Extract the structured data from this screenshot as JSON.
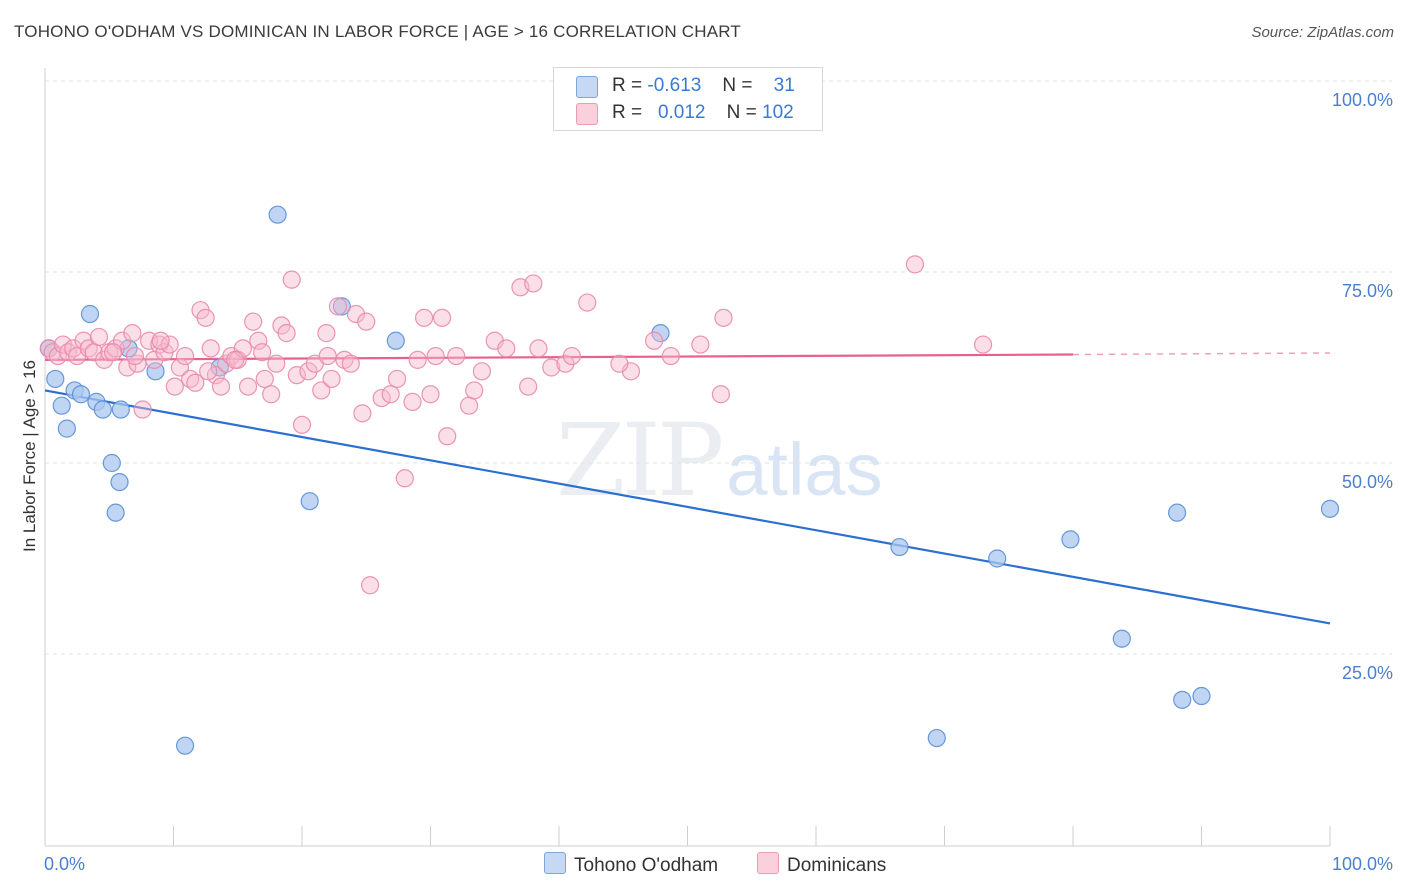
{
  "header": {
    "title": "TOHONO O'ODHAM VS DOMINICAN IN LABOR FORCE | AGE > 16 CORRELATION CHART",
    "source": "Source: ZipAtlas.com"
  },
  "legend": {
    "rows": [
      {
        "r_label": "R =",
        "r_value": "-0.613",
        "n_label": "N =",
        "n_value": "31"
      },
      {
        "r_label": "R =",
        "r_value": "0.012",
        "n_label": "N =",
        "n_value": "102"
      }
    ]
  },
  "watermark": {
    "zip": "ZIP",
    "atlas": "atlas"
  },
  "colors": {
    "blue_fill": "#a9c7ef",
    "blue_stroke": "#5a8fd6",
    "blue_line": "#2a6fd1",
    "pink_fill": "#f6b8cc",
    "pink_stroke": "#e88aa8",
    "pink_line": "#e8608c",
    "grid": "#e2e2e2",
    "tick_label": "#4a7fd0"
  },
  "chart_data": {
    "type": "scatter",
    "title": "TOHONO O'ODHAM VS DOMINICAN IN LABOR FORCE | AGE > 16 CORRELATION CHART",
    "xlabel": "",
    "ylabel": "In Labor Force | Age > 16",
    "xlim": [
      0,
      100
    ],
    "ylim": [
      0,
      102
    ],
    "x_tick_labels": [
      "0.0%",
      "100.0%"
    ],
    "y_ticks": [
      {
        "value": 25,
        "label": "25.0%"
      },
      {
        "value": 50,
        "label": "50.0%"
      },
      {
        "value": 75,
        "label": "75.0%"
      },
      {
        "value": 100,
        "label": "100.0%"
      }
    ],
    "grid": true,
    "legend_position": "bottom",
    "series": [
      {
        "name": "Tohono O'odham",
        "color": "#a9c7ef",
        "points": [
          [
            0.3,
            65
          ],
          [
            0.8,
            61
          ],
          [
            1.3,
            57.5
          ],
          [
            1.7,
            54.5
          ],
          [
            2.3,
            59.5
          ],
          [
            2.8,
            59
          ],
          [
            3.5,
            69.5
          ],
          [
            4.0,
            58
          ],
          [
            4.5,
            57
          ],
          [
            5.2,
            50
          ],
          [
            5.5,
            43.5
          ],
          [
            5.8,
            47.5
          ],
          [
            5.9,
            57
          ],
          [
            6.5,
            65
          ],
          [
            8.6,
            62
          ],
          [
            10.9,
            13
          ],
          [
            13.6,
            62.5
          ],
          [
            18.1,
            82.5
          ],
          [
            20.6,
            45
          ],
          [
            23.1,
            70.5
          ],
          [
            27.3,
            66
          ],
          [
            47.9,
            67
          ],
          [
            66.5,
            39
          ],
          [
            69.4,
            14
          ],
          [
            74.1,
            37.5
          ],
          [
            79.8,
            40
          ],
          [
            83.8,
            27
          ],
          [
            88.1,
            43.5
          ],
          [
            88.5,
            19
          ],
          [
            90.0,
            19.5
          ],
          [
            100.0,
            44
          ]
        ],
        "trend": {
          "x": [
            0,
            100
          ],
          "y": [
            59.5,
            29
          ]
        }
      },
      {
        "name": "Dominicans",
        "color": "#f6b8cc",
        "points": [
          [
            0.3,
            65
          ],
          [
            0.6,
            64.5
          ],
          [
            1.0,
            64
          ],
          [
            1.4,
            65.5
          ],
          [
            1.8,
            64.5
          ],
          [
            2.2,
            65
          ],
          [
            2.5,
            64
          ],
          [
            3.0,
            66
          ],
          [
            3.4,
            65
          ],
          [
            3.8,
            64.5
          ],
          [
            4.2,
            66.5
          ],
          [
            4.6,
            63.5
          ],
          [
            5.0,
            64.5
          ],
          [
            5.5,
            65
          ],
          [
            6.0,
            66
          ],
          [
            6.4,
            62.5
          ],
          [
            6.8,
            67
          ],
          [
            7.2,
            63
          ],
          [
            7.6,
            57
          ],
          [
            8.1,
            66
          ],
          [
            8.5,
            63.5
          ],
          [
            8.9,
            65.5
          ],
          [
            9.3,
            64.5
          ],
          [
            9.7,
            65.5
          ],
          [
            10.1,
            60
          ],
          [
            10.5,
            62.5
          ],
          [
            10.9,
            64
          ],
          [
            11.3,
            61
          ],
          [
            11.7,
            60.5
          ],
          [
            12.1,
            70
          ],
          [
            12.5,
            69
          ],
          [
            12.9,
            65
          ],
          [
            13.3,
            61.5
          ],
          [
            13.7,
            60
          ],
          [
            14.1,
            63
          ],
          [
            14.5,
            64
          ],
          [
            15.0,
            63.5
          ],
          [
            15.4,
            65
          ],
          [
            15.8,
            60
          ],
          [
            16.2,
            68.5
          ],
          [
            16.6,
            66
          ],
          [
            17.1,
            61
          ],
          [
            17.6,
            59
          ],
          [
            18.0,
            63
          ],
          [
            18.4,
            68
          ],
          [
            18.8,
            67
          ],
          [
            19.2,
            74
          ],
          [
            19.6,
            61.5
          ],
          [
            20.0,
            55
          ],
          [
            20.5,
            62
          ],
          [
            21.0,
            63
          ],
          [
            21.5,
            59.5
          ],
          [
            21.9,
            67
          ],
          [
            22.3,
            61
          ],
          [
            22.8,
            70.5
          ],
          [
            23.3,
            63.5
          ],
          [
            23.8,
            63
          ],
          [
            24.2,
            69.5
          ],
          [
            24.7,
            56.5
          ],
          [
            25.0,
            68.5
          ],
          [
            25.3,
            34
          ],
          [
            26.2,
            58.5
          ],
          [
            26.9,
            59
          ],
          [
            27.4,
            61
          ],
          [
            28.0,
            48
          ],
          [
            28.6,
            58
          ],
          [
            29.0,
            63.5
          ],
          [
            29.5,
            69
          ],
          [
            30.0,
            59
          ],
          [
            30.4,
            64
          ],
          [
            30.9,
            69
          ],
          [
            31.3,
            53.5
          ],
          [
            32.0,
            64
          ],
          [
            33.0,
            57.5
          ],
          [
            33.4,
            59.5
          ],
          [
            34.0,
            62
          ],
          [
            35.0,
            66
          ],
          [
            35.9,
            65
          ],
          [
            37.0,
            73
          ],
          [
            37.6,
            60
          ],
          [
            38.0,
            73.5
          ],
          [
            38.4,
            65
          ],
          [
            39.4,
            62.5
          ],
          [
            40.5,
            63
          ],
          [
            41.0,
            64
          ],
          [
            42.2,
            71
          ],
          [
            45.6,
            62
          ],
          [
            47.4,
            66
          ],
          [
            51.0,
            65.5
          ],
          [
            52.6,
            59
          ],
          [
            52.8,
            69
          ],
          [
            67.7,
            76
          ],
          [
            73.0,
            65.5
          ],
          [
            5.3,
            64.5
          ],
          [
            7.0,
            64
          ],
          [
            9.0,
            66
          ],
          [
            12.7,
            62
          ],
          [
            14.8,
            63.5
          ],
          [
            16.9,
            64.5
          ],
          [
            22.0,
            64
          ],
          [
            44.7,
            63
          ],
          [
            48.7,
            64
          ]
        ],
        "trend": {
          "x": [
            0,
            80
          ],
          "y": [
            63.5,
            64.2
          ],
          "dashed_extension": {
            "x": [
              80,
              100
            ],
            "y": [
              64.2,
              64.4
            ]
          }
        }
      }
    ]
  }
}
